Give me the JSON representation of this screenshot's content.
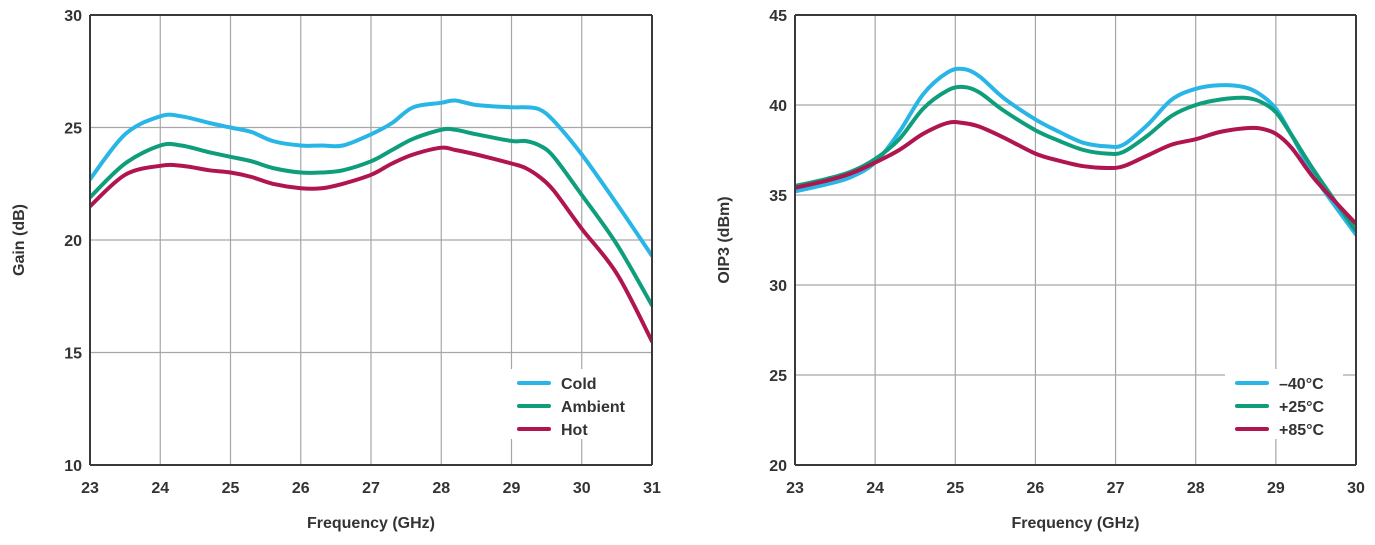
{
  "chart_data": [
    {
      "type": "line",
      "title": "",
      "xlabel": "Frequency (GHz)",
      "ylabel": "Gain (dB)",
      "xlim": [
        23,
        31
      ],
      "ylim": [
        10,
        30
      ],
      "x_ticks": [
        "23",
        "24",
        "25",
        "26",
        "27",
        "28",
        "29",
        "30",
        "31"
      ],
      "y_ticks": [
        "10",
        "15",
        "20",
        "25",
        "30"
      ],
      "grid": true,
      "legend_position": "bottom-right",
      "series": [
        {
          "name": "Cold",
          "color": "#29b6e6",
          "x": [
            23,
            23.5,
            24,
            24.3,
            24.7,
            25,
            25.3,
            25.6,
            26,
            26.3,
            26.6,
            27,
            27.3,
            27.6,
            28,
            28.2,
            28.5,
            29,
            29.2,
            29.4,
            29.6,
            30,
            30.5,
            31
          ],
          "y": [
            22.7,
            24.7,
            25.5,
            25.5,
            25.2,
            25.0,
            24.8,
            24.4,
            24.2,
            24.2,
            24.2,
            24.7,
            25.2,
            25.9,
            26.1,
            26.2,
            26.0,
            25.9,
            25.9,
            25.8,
            25.3,
            23.8,
            21.6,
            19.3
          ]
        },
        {
          "name": "Ambient",
          "color": "#0f9e7b",
          "x": [
            23,
            23.5,
            24,
            24.3,
            24.7,
            25,
            25.3,
            25.6,
            26,
            26.3,
            26.6,
            27,
            27.3,
            27.6,
            28,
            28.2,
            28.5,
            29,
            29.2,
            29.4,
            29.6,
            30,
            30.5,
            31
          ],
          "y": [
            21.9,
            23.4,
            24.2,
            24.2,
            23.9,
            23.7,
            23.5,
            23.2,
            23.0,
            23.0,
            23.1,
            23.5,
            24.0,
            24.5,
            24.9,
            24.9,
            24.7,
            24.4,
            24.4,
            24.2,
            23.7,
            22.0,
            19.8,
            17.1
          ]
        },
        {
          "name": "Hot",
          "color": "#b0154f",
          "x": [
            23,
            23.5,
            24,
            24.3,
            24.7,
            25,
            25.3,
            25.6,
            26,
            26.3,
            26.6,
            27,
            27.3,
            27.6,
            28,
            28.2,
            28.5,
            29,
            29.2,
            29.4,
            29.6,
            30,
            30.5,
            31
          ],
          "y": [
            21.5,
            22.9,
            23.3,
            23.3,
            23.1,
            23.0,
            22.8,
            22.5,
            22.3,
            22.3,
            22.5,
            22.9,
            23.4,
            23.8,
            24.1,
            24.0,
            23.8,
            23.4,
            23.2,
            22.8,
            22.2,
            20.5,
            18.5,
            15.5
          ]
        }
      ]
    },
    {
      "type": "line",
      "title": "",
      "xlabel": "Frequency (GHz)",
      "ylabel": "OIP3 (dBm)",
      "xlim": [
        23,
        30
      ],
      "ylim": [
        20,
        45
      ],
      "x_ticks": [
        "23",
        "24",
        "25",
        "26",
        "27",
        "28",
        "29",
        "30"
      ],
      "y_ticks": [
        "20",
        "25",
        "30",
        "35",
        "40",
        "45"
      ],
      "grid": true,
      "legend_position": "bottom-right",
      "series": [
        {
          "name": "–40°C",
          "color": "#29b6e6",
          "x": [
            23,
            23.4,
            23.7,
            24,
            24.3,
            24.6,
            24.9,
            25.1,
            25.3,
            25.6,
            26,
            26.3,
            26.6,
            26.9,
            27.1,
            27.4,
            27.7,
            28,
            28.3,
            28.6,
            28.8,
            29,
            29.2,
            29.5,
            30
          ],
          "y": [
            35.2,
            35.6,
            36.0,
            36.8,
            38.5,
            40.6,
            41.8,
            42.0,
            41.6,
            40.4,
            39.2,
            38.5,
            37.9,
            37.7,
            37.8,
            38.9,
            40.3,
            40.9,
            41.1,
            41.0,
            40.6,
            39.8,
            38.3,
            35.9,
            32.8
          ]
        },
        {
          "name": "+25°C",
          "color": "#0f9e7b",
          "x": [
            23,
            23.4,
            23.7,
            24,
            24.3,
            24.6,
            24.9,
            25.1,
            25.3,
            25.6,
            26,
            26.3,
            26.6,
            26.9,
            27.1,
            27.4,
            27.7,
            28,
            28.3,
            28.6,
            28.8,
            29,
            29.2,
            29.5,
            30
          ],
          "y": [
            35.5,
            35.9,
            36.3,
            37.0,
            38.1,
            39.8,
            40.8,
            41.0,
            40.7,
            39.7,
            38.6,
            38.0,
            37.5,
            37.3,
            37.4,
            38.3,
            39.4,
            40.0,
            40.3,
            40.4,
            40.2,
            39.6,
            38.3,
            36.2,
            33.0
          ]
        },
        {
          "name": "+85°C",
          "color": "#b0154f",
          "x": [
            23,
            23.4,
            23.7,
            24,
            24.3,
            24.6,
            24.9,
            25.1,
            25.3,
            25.6,
            26,
            26.3,
            26.6,
            26.9,
            27.1,
            27.4,
            27.7,
            28,
            28.3,
            28.6,
            28.8,
            29,
            29.2,
            29.5,
            30
          ],
          "y": [
            35.4,
            35.8,
            36.2,
            36.8,
            37.5,
            38.4,
            39.0,
            39.0,
            38.8,
            38.2,
            37.3,
            36.9,
            36.6,
            36.5,
            36.6,
            37.2,
            37.8,
            38.1,
            38.5,
            38.7,
            38.7,
            38.4,
            37.6,
            35.8,
            33.4
          ]
        }
      ]
    }
  ]
}
